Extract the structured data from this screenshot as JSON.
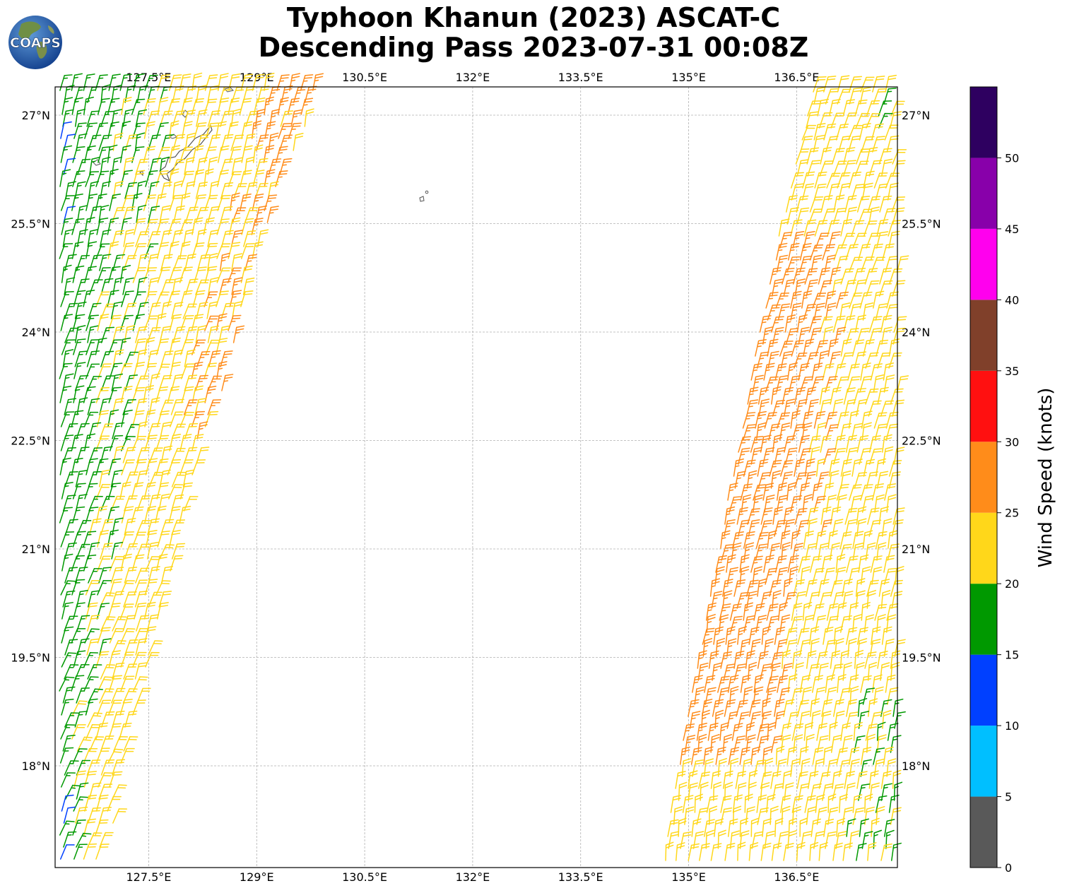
{
  "title": {
    "line1": "Typhoon Khanun (2023) ASCAT-C",
    "line2": "Descending Pass 2023-07-31 00:08Z"
  },
  "logo": {
    "text": "COAPS"
  },
  "map": {
    "lon_range": [
      126.2,
      137.9
    ],
    "lat_range": [
      16.2,
      27.0
    ],
    "lon_ticks": [
      127.5,
      129.0,
      130.5,
      132.0,
      133.5,
      135.0,
      136.5
    ],
    "lon_tick_labels": [
      "127.5°E",
      "129°E",
      "130.5°E",
      "132°E",
      "133.5°E",
      "135°E",
      "136.5°E"
    ],
    "lat_ticks": [
      18.0,
      19.5,
      21.0,
      22.5,
      24.0,
      25.5,
      27.0
    ],
    "lat_tick_labels": [
      "18°N",
      "19.5°N",
      "21°N",
      "22.5°N",
      "24°N",
      "25.5°N",
      "27°N"
    ],
    "grid": true,
    "grid_style": "dashed",
    "coastline_color": "#555555"
  },
  "colorbar": {
    "label": "Wind Speed (knots)",
    "tick_values": [
      0,
      5,
      10,
      15,
      20,
      25,
      30,
      35,
      40,
      45,
      50
    ],
    "tick_labels": [
      "0",
      "5",
      "10",
      "15",
      "20",
      "25",
      "30",
      "35",
      "40",
      "45",
      "50"
    ],
    "max": 55,
    "bins": [
      {
        "from": 0,
        "to": 5,
        "color": "#595959"
      },
      {
        "from": 5,
        "to": 10,
        "color": "#00bfff"
      },
      {
        "from": 10,
        "to": 15,
        "color": "#0040ff"
      },
      {
        "from": 15,
        "to": 20,
        "color": "#009900"
      },
      {
        "from": 20,
        "to": 25,
        "color": "#ffd71a"
      },
      {
        "from": 25,
        "to": 30,
        "color": "#ff8c1a"
      },
      {
        "from": 30,
        "to": 35,
        "color": "#ff1010"
      },
      {
        "from": 35,
        "to": 40,
        "color": "#80402a"
      },
      {
        "from": 40,
        "to": 45,
        "color": "#ff00ee"
      },
      {
        "from": 45,
        "to": 50,
        "color": "#8800aa"
      },
      {
        "from": 50,
        "to": 55,
        "color": "#2e0060"
      }
    ]
  },
  "wind_swaths": {
    "west": {
      "region": "west of ~129.5°E",
      "speed_bands_knots": [
        "10-15 (edge)",
        "15-20",
        "20-25",
        "25-30"
      ],
      "wind_direction": "mostly southerly to southwesterly"
    },
    "east": {
      "region": "east of ~134.5°E",
      "speed_bands_knots": [
        "15-20 (edge)",
        "20-25",
        "25-30"
      ],
      "wind_direction": "mostly southerly to southwesterly"
    }
  }
}
